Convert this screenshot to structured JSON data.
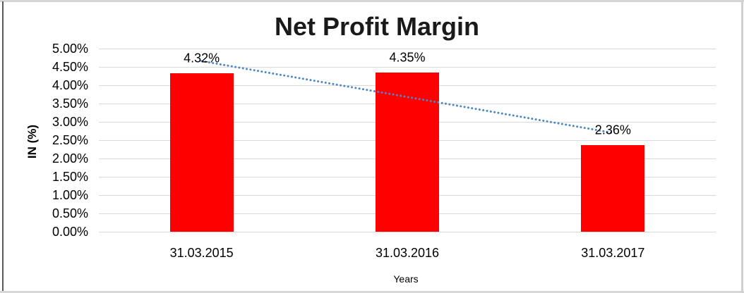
{
  "chart_data": {
    "type": "bar",
    "title": "Net Profit Margin",
    "categories": [
      "31.03.2015",
      "31.03.2016",
      "31.03.2017"
    ],
    "values": [
      4.32,
      4.35,
      2.36
    ],
    "data_labels": [
      "4.32%",
      "4.35%",
      "2.36%"
    ],
    "xlabel": "Years",
    "ylabel": "IN (%)",
    "ylim": [
      0,
      5
    ],
    "ytick_step": 0.5,
    "ytick_labels": [
      "0.00%",
      "0.50%",
      "1.00%",
      "1.50%",
      "2.00%",
      "2.50%",
      "3.00%",
      "3.50%",
      "4.00%",
      "4.50%",
      "5.00%"
    ],
    "grid": true,
    "legend": "none",
    "bar_color": "#FF0000",
    "trendline": {
      "type": "linear",
      "style": "dotted",
      "color": "#4D87C5",
      "start_value": 4.66,
      "end_value": 2.7
    }
  }
}
